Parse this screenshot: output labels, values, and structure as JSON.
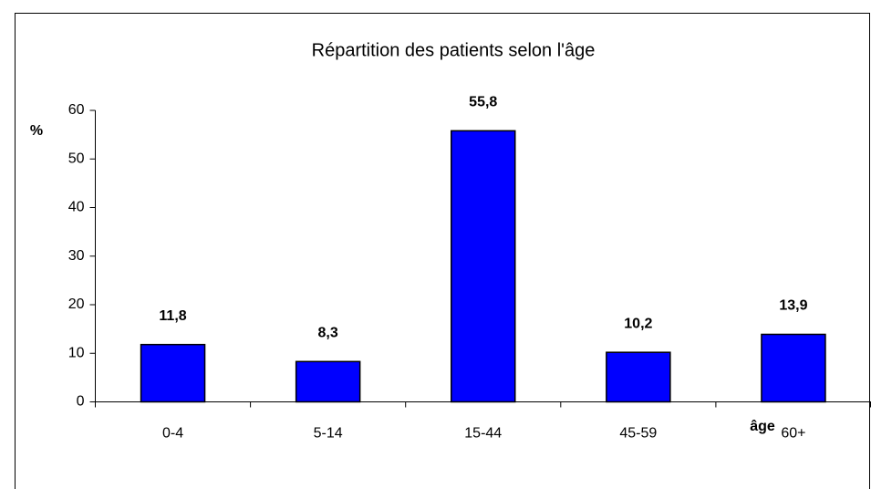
{
  "chart_data": {
    "type": "bar",
    "title": "Répartition des patients selon l'âge",
    "y_label": "%",
    "x_label": "âge",
    "categories": [
      "0-4",
      "5-14",
      "15-44",
      "45-59",
      "60+"
    ],
    "values": [
      11.8,
      8.3,
      55.8,
      10.2,
      13.9
    ],
    "value_labels": [
      "11,8",
      "8,3",
      "55,8",
      "10,2",
      "13,9"
    ],
    "color": "#0000ff",
    "ylim": [
      0,
      60
    ],
    "yticks": [
      0,
      10,
      20,
      30,
      40,
      50,
      60
    ],
    "grid": false
  }
}
